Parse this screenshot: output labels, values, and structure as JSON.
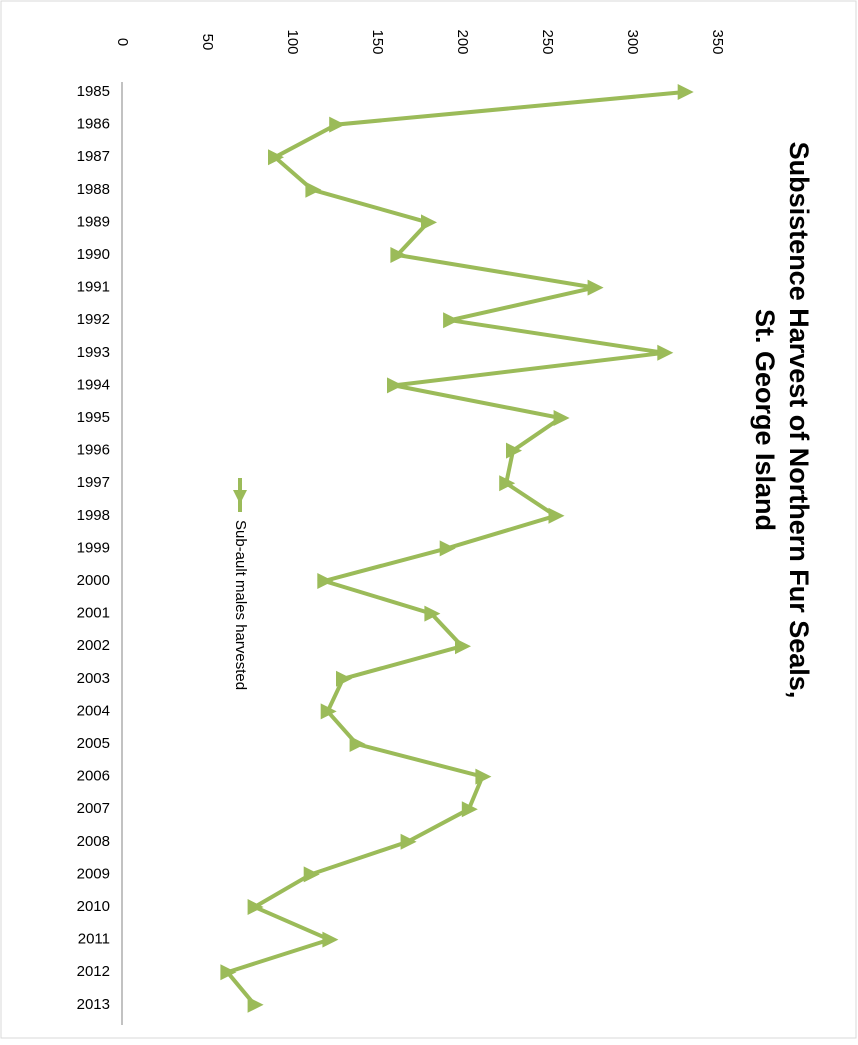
{
  "chart_data": {
    "type": "line",
    "title_lines": [
      "Subsistence Harvest of Northern Fur Seals,",
      "St. George Island"
    ],
    "x": [
      "1985",
      "1986",
      "1987",
      "1988",
      "1989",
      "1990",
      "1991",
      "1992",
      "1993",
      "1994",
      "1995",
      "1996",
      "1997",
      "1998",
      "1999",
      "2000",
      "2001",
      "2002",
      "2003",
      "2004",
      "2005",
      "2006",
      "2007",
      "2008",
      "2009",
      "2010",
      "2011",
      "2012",
      "2013"
    ],
    "series": [
      {
        "name": "Sub-ault males harvested",
        "color": "#9bbb59",
        "marker": "triangle",
        "values": [
          331,
          126,
          90,
          112,
          180,
          162,
          278,
          193,
          319,
          160,
          258,
          230,
          226,
          255,
          191,
          119,
          182,
          200,
          130,
          121,
          138,
          212,
          204,
          168,
          111,
          78,
          122,
          62,
          78
        ]
      }
    ],
    "value_axis": {
      "min": 0,
      "max": 350,
      "step": 50,
      "ticks": [
        "0",
        "50",
        "100",
        "150",
        "200",
        "250",
        "300",
        "350"
      ]
    },
    "gridlines": false,
    "legend_position": "bottom",
    "orientation": "rotated-90-clockwise"
  }
}
